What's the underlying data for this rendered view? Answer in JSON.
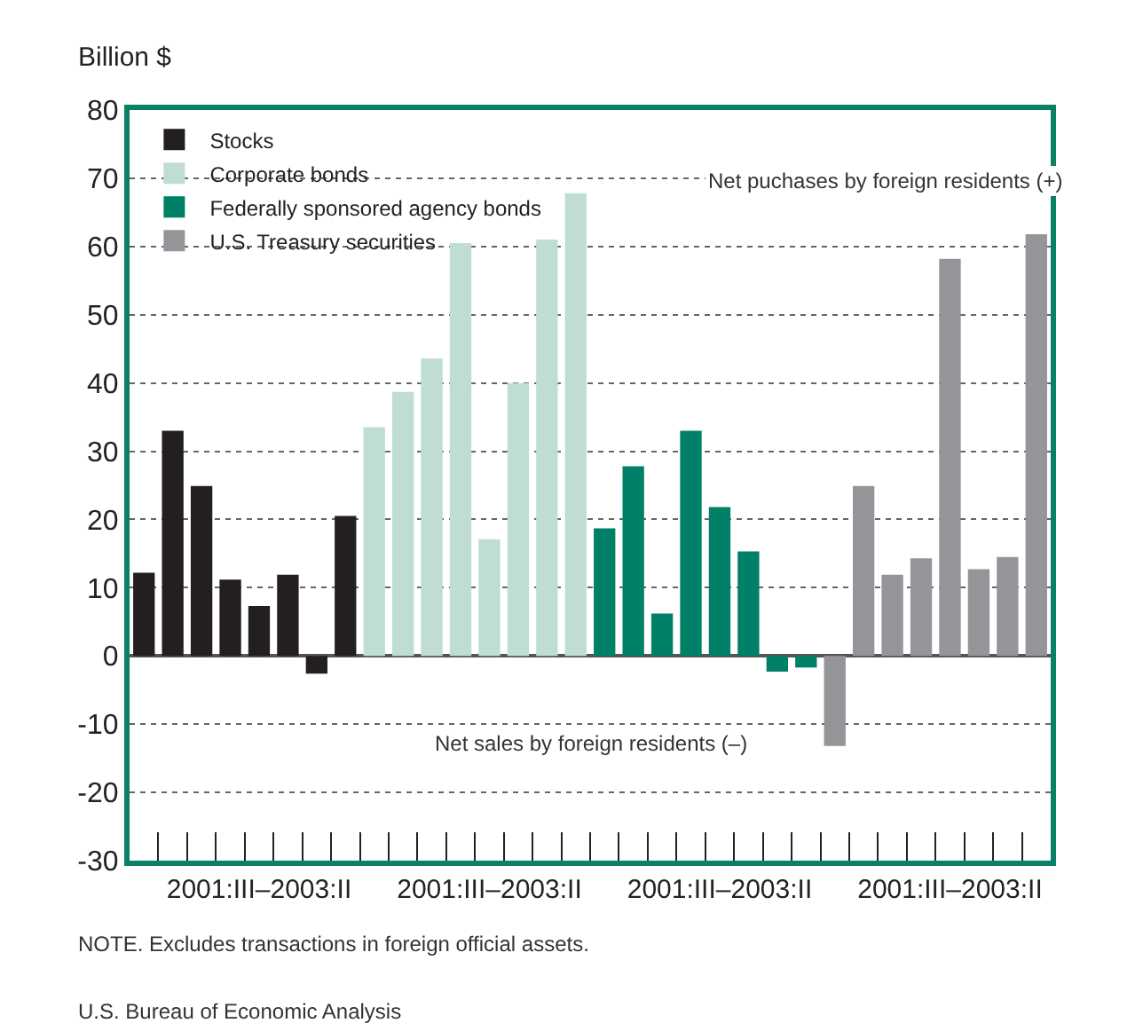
{
  "chart_data": {
    "type": "bar",
    "ylabel": "Billion $",
    "categories": [
      null,
      null,
      null,
      null,
      "2001:III–2003:II",
      null,
      null,
      null,
      null,
      null,
      null,
      null,
      "2001:III–2003:II",
      null,
      null,
      null,
      null,
      null,
      null,
      null,
      "2001:III–2003:II",
      null,
      null,
      null,
      null,
      null,
      null,
      null,
      "2001:III–2003:II",
      null,
      null,
      null
    ],
    "ylim": [
      -30,
      80
    ],
    "yticks": [
      -30,
      -20,
      -10,
      0,
      10,
      20,
      30,
      40,
      50,
      60,
      70,
      80
    ],
    "grid": "y",
    "legend": "top left",
    "series": [
      {
        "name": "Stocks",
        "color": "#231f20",
        "values": [
          12.2,
          33.0,
          24.9,
          11.2,
          7.3,
          11.9,
          -2.6,
          20.5,
          null,
          null,
          null,
          null,
          null,
          null,
          null,
          null,
          null,
          null,
          null,
          null,
          null,
          null,
          null,
          null,
          null,
          null,
          null,
          null,
          null,
          null,
          null,
          null
        ]
      },
      {
        "name": "Corporate bonds",
        "color": "#bfddd5",
        "values": [
          null,
          null,
          null,
          null,
          null,
          null,
          null,
          null,
          33.5,
          38.7,
          43.6,
          60.5,
          17.1,
          40.0,
          61.0,
          67.8,
          null,
          null,
          null,
          null,
          null,
          null,
          null,
          null,
          null,
          null,
          null,
          null,
          null,
          null,
          null,
          null
        ]
      },
      {
        "name": "Federally sponsored agency bonds",
        "color": "#008066",
        "values": [
          null,
          null,
          null,
          null,
          null,
          null,
          null,
          null,
          null,
          null,
          null,
          null,
          null,
          null,
          null,
          null,
          18.7,
          27.8,
          6.2,
          33.0,
          21.8,
          15.3,
          -2.3,
          -1.7,
          null,
          null,
          null,
          null,
          null,
          null,
          null,
          null
        ]
      },
      {
        "name": "U.S. Treasury securities",
        "color": "#939598",
        "values": [
          null,
          null,
          null,
          null,
          null,
          null,
          null,
          null,
          null,
          null,
          null,
          null,
          null,
          null,
          null,
          null,
          null,
          null,
          null,
          null,
          null,
          null,
          null,
          null,
          -13.2,
          24.9,
          11.9,
          14.3,
          58.2,
          12.7,
          14.5,
          61.8
        ]
      }
    ],
    "annotations": [
      "Net puchases by foreign residents (+)",
      "Net sales by foreign residents (–)",
      "NOTE. Excludes transactions in foreign official assets.",
      "U.S. Bureau of Economic Analysis"
    ]
  }
}
